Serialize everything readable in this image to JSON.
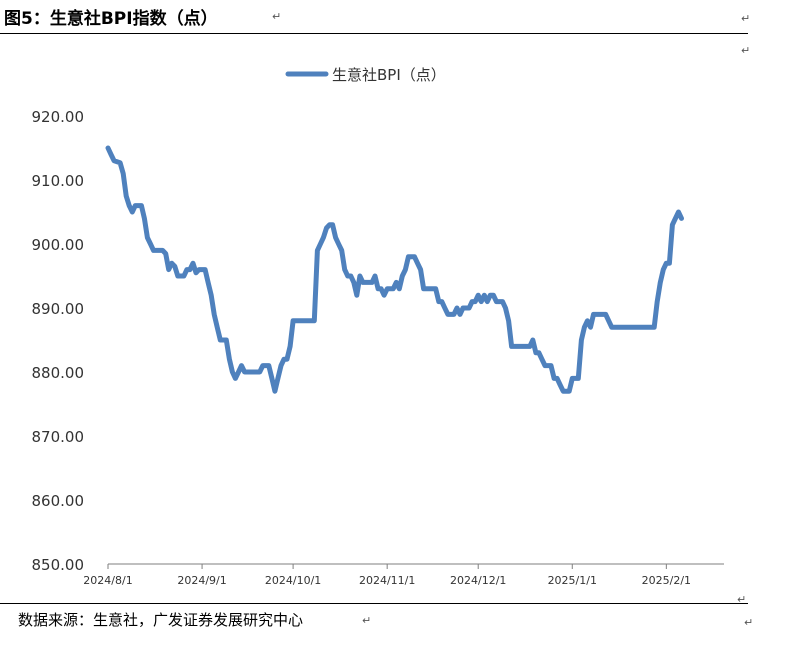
{
  "figure": {
    "title": "图5：生意社BPI指数（点）",
    "source": "数据来源：生意社，广发证券发展研究中心",
    "para_mark": "↵"
  },
  "colors": {
    "series": "#4F81BD",
    "axis": "#7F7F7F",
    "text": "#333333"
  },
  "chart_data": {
    "type": "line",
    "title": "",
    "xlabel": "",
    "ylabel": "",
    "ylim": [
      850,
      920
    ],
    "yticks": [
      850,
      860,
      870,
      880,
      890,
      900,
      910,
      920
    ],
    "ytick_labels": [
      "850.00",
      "860.00",
      "870.00",
      "880.00",
      "890.00",
      "900.00",
      "910.00",
      "920.00"
    ],
    "xlim": [
      "2024-08-01",
      "2025-02-20"
    ],
    "xticks": [
      "2024-08-01",
      "2024-09-01",
      "2024-10-01",
      "2024-11-01",
      "2024-12-01",
      "2025-01-01",
      "2025-02-01"
    ],
    "xtick_labels": [
      "2024/8/1",
      "2024/9/1",
      "2024/10/1",
      "2024/11/1",
      "2024/12/1",
      "2025/1/1",
      "2025/2/1"
    ],
    "legend": "top-center",
    "grid": false,
    "series": [
      {
        "name": "生意社BPI（点）",
        "points": [
          [
            "2024-08-01",
            915.0
          ],
          [
            "2024-08-02",
            914.0
          ],
          [
            "2024-08-03",
            913.0
          ],
          [
            "2024-08-05",
            912.7
          ],
          [
            "2024-08-06",
            911.0
          ],
          [
            "2024-08-07",
            907.5
          ],
          [
            "2024-08-08",
            906.0
          ],
          [
            "2024-08-09",
            905.0
          ],
          [
            "2024-08-10",
            906.0
          ],
          [
            "2024-08-12",
            906.0
          ],
          [
            "2024-08-13",
            904.0
          ],
          [
            "2024-08-14",
            901.0
          ],
          [
            "2024-08-15",
            900.0
          ],
          [
            "2024-08-16",
            899.0
          ],
          [
            "2024-08-19",
            899.0
          ],
          [
            "2024-08-20",
            898.5
          ],
          [
            "2024-08-21",
            896.0
          ],
          [
            "2024-08-22",
            897.0
          ],
          [
            "2024-08-23",
            896.5
          ],
          [
            "2024-08-24",
            895.0
          ],
          [
            "2024-08-26",
            895.0
          ],
          [
            "2024-08-27",
            896.0
          ],
          [
            "2024-08-28",
            896.0
          ],
          [
            "2024-08-29",
            897.0
          ],
          [
            "2024-08-30",
            895.5
          ],
          [
            "2024-08-31",
            896.0
          ],
          [
            "2024-09-01",
            896.0
          ],
          [
            "2024-09-02",
            896.0
          ],
          [
            "2024-09-03",
            894.0
          ],
          [
            "2024-09-04",
            892.0
          ],
          [
            "2024-09-05",
            889.0
          ],
          [
            "2024-09-06",
            887.0
          ],
          [
            "2024-09-07",
            885.0
          ],
          [
            "2024-09-09",
            885.0
          ],
          [
            "2024-09-10",
            882.0
          ],
          [
            "2024-09-11",
            880.0
          ],
          [
            "2024-09-12",
            879.0
          ],
          [
            "2024-09-13",
            880.0
          ],
          [
            "2024-09-14",
            881.0
          ],
          [
            "2024-09-15",
            880.0
          ],
          [
            "2024-09-18",
            880.0
          ],
          [
            "2024-09-20",
            880.0
          ],
          [
            "2024-09-21",
            881.0
          ],
          [
            "2024-09-23",
            881.0
          ],
          [
            "2024-09-24",
            879.0
          ],
          [
            "2024-09-25",
            877.0
          ],
          [
            "2024-09-26",
            879.0
          ],
          [
            "2024-09-27",
            881.0
          ],
          [
            "2024-09-28",
            882.0
          ],
          [
            "2024-09-29",
            882.0
          ],
          [
            "2024-09-30",
            884.0
          ],
          [
            "2024-10-01",
            888.0
          ],
          [
            "2024-10-03",
            888.0
          ],
          [
            "2024-10-05",
            888.0
          ],
          [
            "2024-10-08",
            888.0
          ],
          [
            "2024-10-09",
            899.0
          ],
          [
            "2024-10-10",
            900.0
          ],
          [
            "2024-10-11",
            901.0
          ],
          [
            "2024-10-12",
            902.5
          ],
          [
            "2024-10-13",
            903.0
          ],
          [
            "2024-10-14",
            903.0
          ],
          [
            "2024-10-15",
            901.0
          ],
          [
            "2024-10-16",
            900.0
          ],
          [
            "2024-10-17",
            899.0
          ],
          [
            "2024-10-18",
            896.0
          ],
          [
            "2024-10-19",
            895.0
          ],
          [
            "2024-10-20",
            895.0
          ],
          [
            "2024-10-21",
            894.0
          ],
          [
            "2024-10-22",
            892.0
          ],
          [
            "2024-10-23",
            895.0
          ],
          [
            "2024-10-24",
            894.0
          ],
          [
            "2024-10-26",
            894.0
          ],
          [
            "2024-10-27",
            894.0
          ],
          [
            "2024-10-28",
            895.0
          ],
          [
            "2024-10-29",
            893.0
          ],
          [
            "2024-10-30",
            893.0
          ],
          [
            "2024-10-31",
            892.0
          ],
          [
            "2024-11-01",
            893.0
          ],
          [
            "2024-11-02",
            893.0
          ],
          [
            "2024-11-03",
            893.0
          ],
          [
            "2024-11-04",
            894.0
          ],
          [
            "2024-11-05",
            893.0
          ],
          [
            "2024-11-06",
            895.0
          ],
          [
            "2024-11-07",
            896.0
          ],
          [
            "2024-11-08",
            898.0
          ],
          [
            "2024-11-10",
            898.0
          ],
          [
            "2024-11-11",
            897.0
          ],
          [
            "2024-11-12",
            896.0
          ],
          [
            "2024-11-13",
            893.0
          ],
          [
            "2024-11-14",
            893.0
          ],
          [
            "2024-11-17",
            893.0
          ],
          [
            "2024-11-18",
            891.0
          ],
          [
            "2024-11-19",
            891.0
          ],
          [
            "2024-11-20",
            890.0
          ],
          [
            "2024-11-21",
            889.0
          ],
          [
            "2024-11-23",
            889.0
          ],
          [
            "2024-11-24",
            890.0
          ],
          [
            "2024-11-25",
            889.0
          ],
          [
            "2024-11-26",
            890.0
          ],
          [
            "2024-11-28",
            890.0
          ],
          [
            "2024-11-29",
            891.0
          ],
          [
            "2024-11-30",
            891.0
          ],
          [
            "2024-12-01",
            892.0
          ],
          [
            "2024-12-02",
            891.0
          ],
          [
            "2024-12-03",
            892.0
          ],
          [
            "2024-12-04",
            891.0
          ],
          [
            "2024-12-05",
            892.0
          ],
          [
            "2024-12-06",
            892.0
          ],
          [
            "2024-12-07",
            891.0
          ],
          [
            "2024-12-09",
            891.0
          ],
          [
            "2024-12-10",
            890.0
          ],
          [
            "2024-12-11",
            888.0
          ],
          [
            "2024-12-12",
            884.0
          ],
          [
            "2024-12-13",
            884.0
          ],
          [
            "2024-12-18",
            884.0
          ],
          [
            "2024-12-19",
            885.0
          ],
          [
            "2024-12-20",
            883.0
          ],
          [
            "2024-12-21",
            883.0
          ],
          [
            "2024-12-22",
            882.0
          ],
          [
            "2024-12-23",
            881.0
          ],
          [
            "2024-12-25",
            881.0
          ],
          [
            "2024-12-26",
            879.0
          ],
          [
            "2024-12-27",
            879.0
          ],
          [
            "2024-12-28",
            878.0
          ],
          [
            "2024-12-29",
            877.0
          ],
          [
            "2024-12-31",
            877.0
          ],
          [
            "2025-01-01",
            879.0
          ],
          [
            "2025-01-03",
            879.0
          ],
          [
            "2025-01-04",
            885.0
          ],
          [
            "2025-01-05",
            887.0
          ],
          [
            "2025-01-06",
            888.0
          ],
          [
            "2025-01-07",
            887.0
          ],
          [
            "2025-01-08",
            889.0
          ],
          [
            "2025-01-09",
            889.0
          ],
          [
            "2025-01-12",
            889.0
          ],
          [
            "2025-01-13",
            888.0
          ],
          [
            "2025-01-14",
            887.0
          ],
          [
            "2025-01-20",
            887.0
          ],
          [
            "2025-01-27",
            887.0
          ],
          [
            "2025-01-28",
            887.0
          ],
          [
            "2025-01-29",
            891.0
          ],
          [
            "2025-01-30",
            894.0
          ],
          [
            "2025-01-31",
            896.0
          ],
          [
            "2025-02-01",
            897.0
          ],
          [
            "2025-02-02",
            897.0
          ],
          [
            "2025-02-03",
            903.0
          ],
          [
            "2025-02-04",
            904.0
          ],
          [
            "2025-02-05",
            905.0
          ],
          [
            "2025-02-06",
            904.0
          ]
        ]
      }
    ]
  }
}
